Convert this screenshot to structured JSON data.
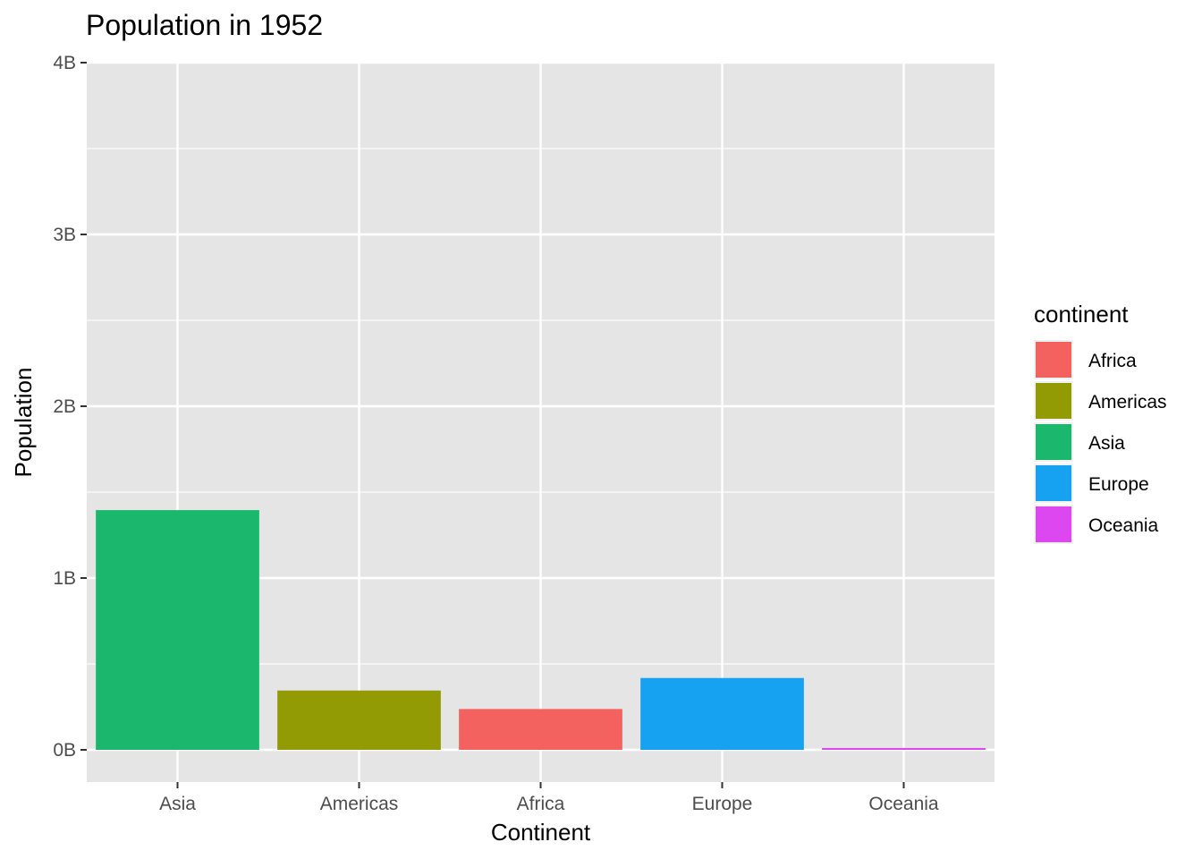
{
  "chart_data": {
    "type": "bar",
    "title": "Population in 1952",
    "xlabel": "Continent",
    "ylabel": "Population",
    "categories": [
      "Asia",
      "Americas",
      "Africa",
      "Europe",
      "Oceania"
    ],
    "values": [
      1395357352,
      345152446,
      237640501,
      418120846,
      10686006
    ],
    "colors": [
      "#1AB76D",
      "#939B04",
      "#F3625E",
      "#16A2F0",
      "#DC47EF"
    ],
    "ylim": [
      -180000000.0,
      4000000000.0
    ],
    "yticks": [
      0,
      1000000000.0,
      2000000000.0,
      3000000000.0,
      4000000000.0
    ],
    "ytick_labels": [
      "0B",
      "1B",
      "2B",
      "3B",
      "4B"
    ],
    "grid": true,
    "background": "#E5E5E5",
    "legend": {
      "title": "continent",
      "position": "right",
      "items": [
        {
          "label": "Africa",
          "color": "#F3625E"
        },
        {
          "label": "Americas",
          "color": "#939B04"
        },
        {
          "label": "Asia",
          "color": "#1AB76D"
        },
        {
          "label": "Europe",
          "color": "#16A2F0"
        },
        {
          "label": "Oceania",
          "color": "#DC47EF"
        }
      ]
    }
  }
}
